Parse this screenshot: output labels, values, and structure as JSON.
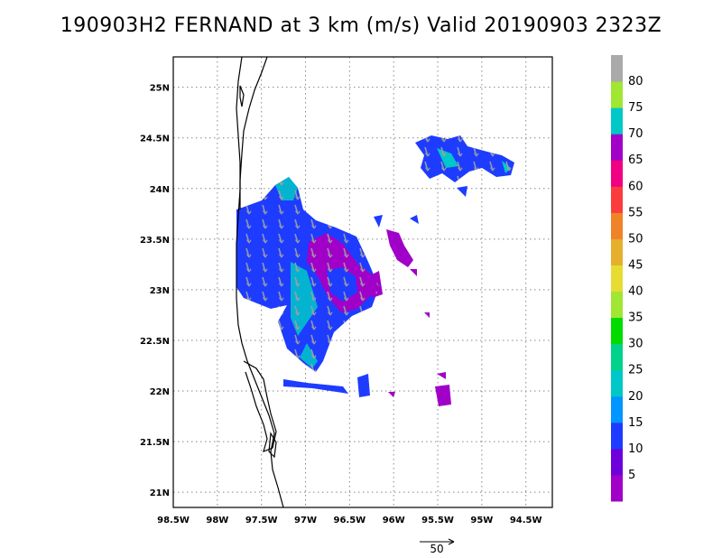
{
  "title": "190903H2 FERNAND at 3 km (m/s) Valid 20190903 2323Z",
  "map": {
    "lat_range": [
      20.85,
      25.3
    ],
    "lon_range": [
      -98.5,
      -94.2
    ],
    "lat_ticks": [
      {
        "value": 21.0,
        "label": "21N"
      },
      {
        "value": 21.5,
        "label": "21.5N"
      },
      {
        "value": 22.0,
        "label": "22N"
      },
      {
        "value": 22.5,
        "label": "22.5N"
      },
      {
        "value": 23.0,
        "label": "23N"
      },
      {
        "value": 23.5,
        "label": "23.5N"
      },
      {
        "value": 24.0,
        "label": "24N"
      },
      {
        "value": 24.5,
        "label": "24.5N"
      },
      {
        "value": 25.0,
        "label": "25N"
      }
    ],
    "lon_ticks": [
      {
        "value": -98.5,
        "label": "98.5W"
      },
      {
        "value": -98.0,
        "label": "98W"
      },
      {
        "value": -97.5,
        "label": "97.5W"
      },
      {
        "value": -97.0,
        "label": "97W"
      },
      {
        "value": -96.5,
        "label": "96.5W"
      },
      {
        "value": -96.0,
        "label": "96W"
      },
      {
        "value": -95.5,
        "label": "95.5W"
      },
      {
        "value": -95.0,
        "label": "95W"
      },
      {
        "value": -94.5,
        "label": "94.5W"
      }
    ],
    "grid": "dotted"
  },
  "colorbar": {
    "labels": [
      "5",
      "10",
      "15",
      "20",
      "25",
      "30",
      "35",
      "40",
      "45",
      "50",
      "55",
      "60",
      "65",
      "70",
      "75",
      "80"
    ],
    "colors": [
      "#a000c8",
      "#6e00dc",
      "#1e3cff",
      "#0096ff",
      "#00c8c8",
      "#00d28c",
      "#00dc00",
      "#a0e632",
      "#e6dc32",
      "#e6af2d",
      "#f08228",
      "#fa3c3c",
      "#f00082",
      "#a000c8",
      "#00c8c8",
      "#a0e632",
      "#aaaaaa"
    ]
  },
  "reference_vector": {
    "label": "50"
  },
  "colors": {
    "wind_low": "#a000c8",
    "wind_10": "#1e3cff",
    "wind_15": "#0096ff",
    "wind_20": "#00c8c8",
    "arrow": "#a0a0a0",
    "coast": "#000000"
  }
}
